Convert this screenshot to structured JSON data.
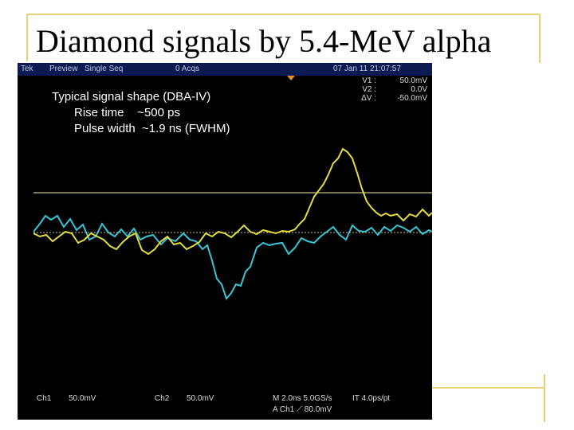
{
  "slide": {
    "title": "Diamond signals by 5.4-MeV alpha"
  },
  "scope": {
    "brand": "Tek",
    "mode": "Preview",
    "acq_mode": "Single Seq",
    "acq_count": "0 Acqs",
    "datetime": "07 Jan 11 21:07:57",
    "cursors": {
      "v1_label": "V1 :",
      "v1_value": "50.0mV",
      "v2_label": "V2 :",
      "v2_value": "0.0V",
      "dv_label": "ΔV :",
      "dv_value": "-50.0mV"
    },
    "annotation": {
      "line1": "Typical signal shape (DBA-IV)",
      "line2": "Rise time    ~500 ps",
      "line3": "Pulse width  ~1.9 ns (FWHM)"
    },
    "bottom": {
      "ch1_label": "Ch1",
      "ch1_scale": "50.0mV",
      "ch2_label": "Ch2",
      "ch2_scale": "50.0mV",
      "timebase": "M 2.0ns 5.0GS/s",
      "interp": "IT 4.0ps/pt",
      "trigger": "A  Ch1  ⟋  80.0mV"
    },
    "colors": {
      "ch1": "#e3dc3c",
      "ch2": "#35c6d8",
      "cursor": "#c8c28a",
      "background": "#000000",
      "header": "#0c1a52"
    }
  }
}
